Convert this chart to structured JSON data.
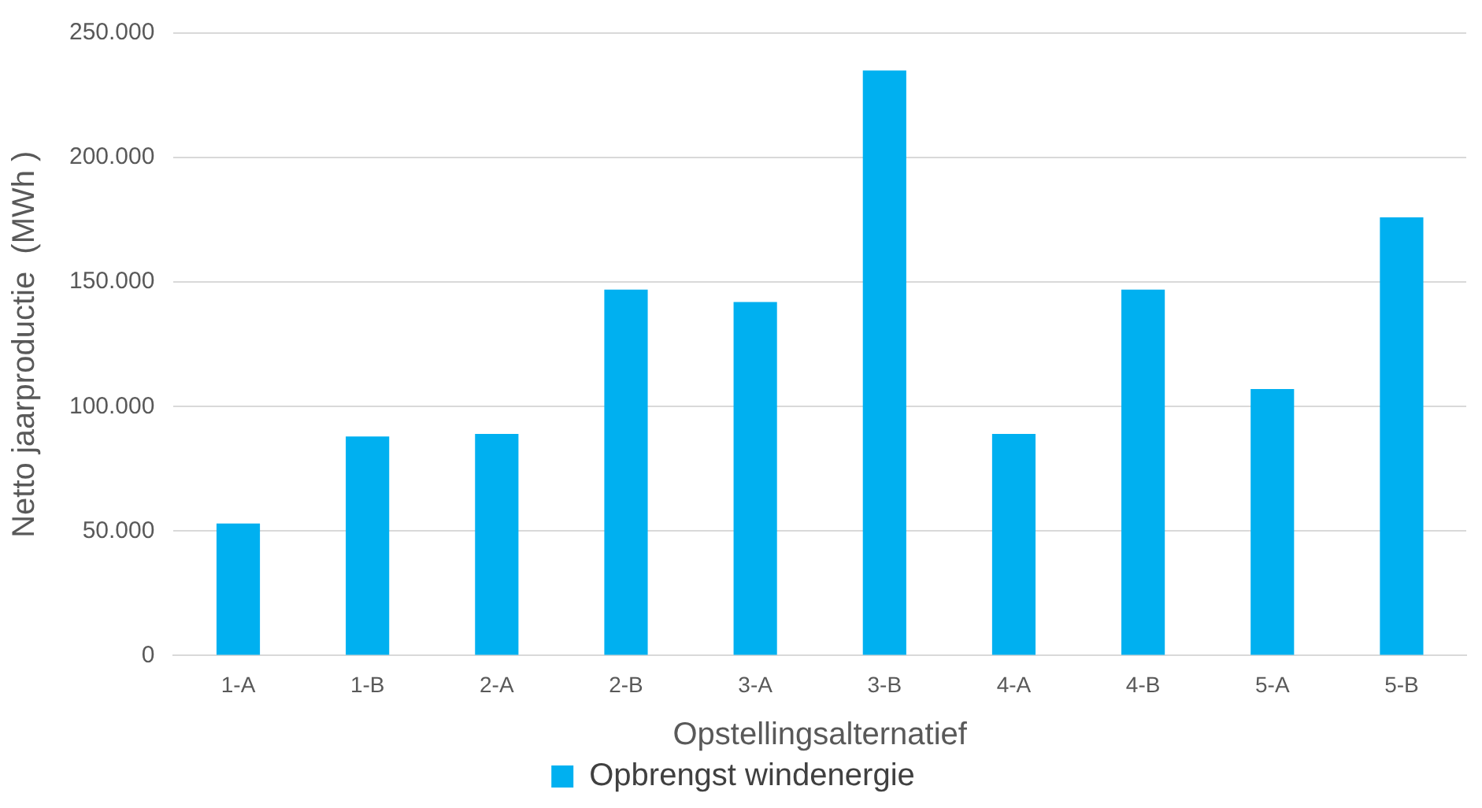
{
  "chart_data": {
    "type": "bar",
    "xlabel": "Opstellingsalternatief",
    "ylabel": "Netto jaarproductie  (MWh )",
    "categories": [
      "1-A",
      "1-B",
      "2-A",
      "2-B",
      "3-A",
      "3-B",
      "4-A",
      "4-B",
      "5-A",
      "5-B"
    ],
    "series": [
      {
        "name": "Opbrengst windenergie",
        "color": "#00b0f0",
        "values": [
          53000,
          88000,
          89000,
          147000,
          142000,
          235000,
          89000,
          147000,
          107000,
          176000
        ]
      }
    ],
    "ylim": [
      0,
      250000
    ],
    "yticks": [
      {
        "value": 0,
        "label": "0"
      },
      {
        "value": 50000,
        "label": "50.000"
      },
      {
        "value": 100000,
        "label": "100.000"
      },
      {
        "value": 150000,
        "label": "150.000"
      },
      {
        "value": 200000,
        "label": "200.000"
      },
      {
        "value": 250000,
        "label": "250.000"
      }
    ],
    "grid": "y",
    "legend": "bottom"
  }
}
